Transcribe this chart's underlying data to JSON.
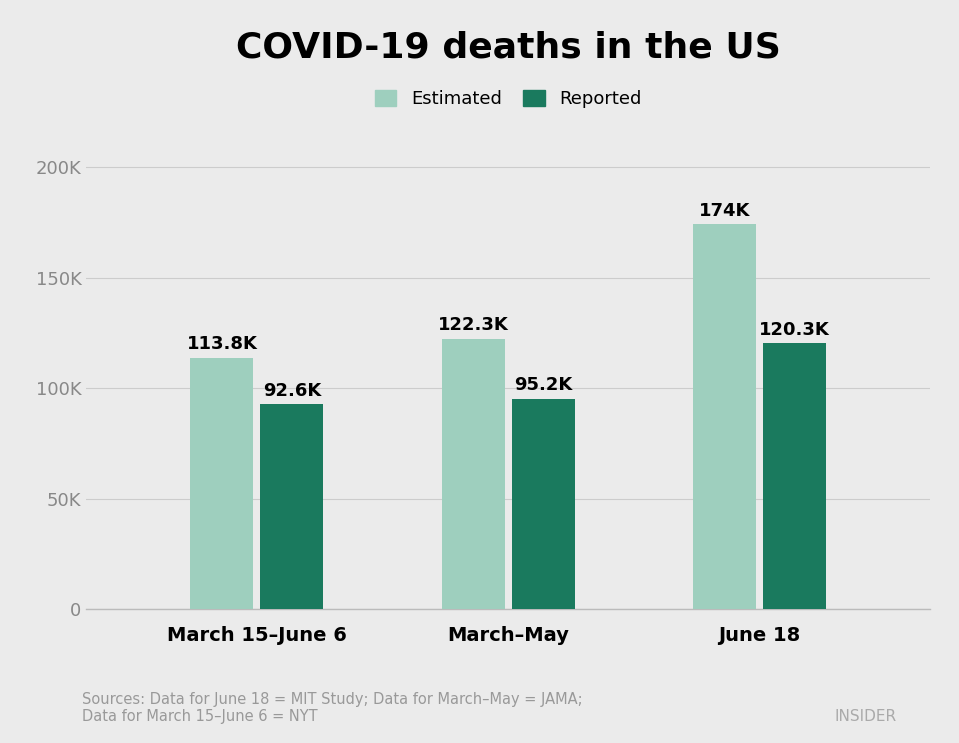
{
  "title": "COVID-19 deaths in the US",
  "categories": [
    "March 15–June 6",
    "March–May",
    "June 18"
  ],
  "estimated_values": [
    113800,
    122300,
    174000
  ],
  "reported_values": [
    92600,
    95200,
    120300
  ],
  "estimated_labels": [
    "113.8K",
    "122.3K",
    "174K"
  ],
  "reported_labels": [
    "92.6K",
    "95.2K",
    "120.3K"
  ],
  "estimated_color": "#9ecfbe",
  "reported_color": "#1a7a5e",
  "background_color": "#ebebeb",
  "ylim": [
    0,
    215000
  ],
  "yticks": [
    0,
    50000,
    100000,
    150000,
    200000
  ],
  "ytick_labels": [
    "0",
    "50K",
    "100K",
    "150K",
    "200K"
  ],
  "legend_estimated": "Estimated",
  "legend_reported": "Reported",
  "source_text": "Sources: Data for June 18 = MIT Study; Data for March–May = JAMA;\nData for March 15–June 6 = NYT",
  "insider_text": "INSIDER",
  "title_fontsize": 26,
  "label_fontsize": 13,
  "tick_fontsize": 13,
  "legend_fontsize": 13,
  "source_fontsize": 10.5,
  "insider_fontsize": 11
}
